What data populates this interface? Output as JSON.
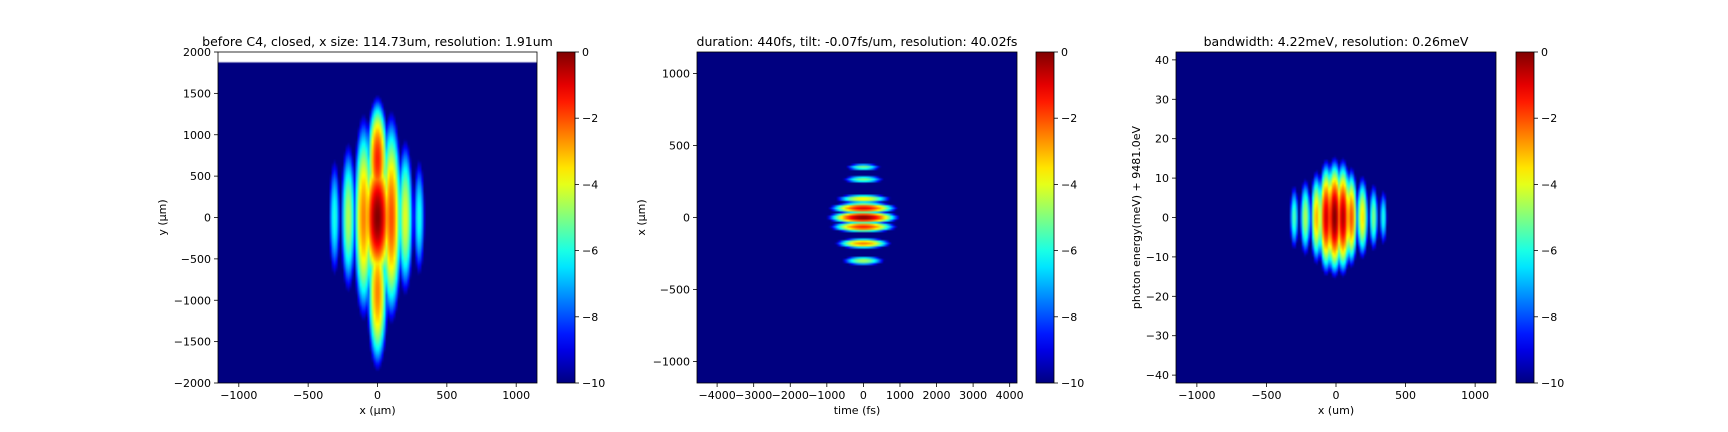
{
  "chart_data": [
    {
      "type": "heatmap",
      "title": "before C4, closed, x size: 114.73um, resolution: 1.91um",
      "xlabel": "x (μm)",
      "ylabel": "y (μm)",
      "xlim": [
        -1150,
        1150
      ],
      "ylim": [
        -2000,
        2000
      ],
      "xticks": [
        -1000,
        -500,
        0,
        500,
        1000
      ],
      "xtick_labels": [
        "−1000",
        "−500",
        "0",
        "500",
        "1000"
      ],
      "yticks": [
        -2000,
        -1500,
        -1000,
        -500,
        0,
        500,
        1000,
        1500,
        2000
      ],
      "ytick_labels": [
        "−2000",
        "−1500",
        "−1000",
        "−500",
        "0",
        "500",
        "1000",
        "1500",
        "2000"
      ],
      "colormap": "jet",
      "color_range": [
        -10,
        0
      ],
      "colorbar_ticks": [
        0,
        -2,
        -4,
        -6,
        -8,
        -10
      ],
      "colorbar_tick_labels": [
        "0",
        "−2",
        "−4",
        "−6",
        "−8",
        "−10"
      ],
      "data_extent_y_top": 1880,
      "background_value": -10,
      "blobs": [
        {
          "x": 0,
          "y": 0,
          "sx": 55,
          "sy": 420,
          "peak": 0
        },
        {
          "x": 0,
          "y": 700,
          "sx": 40,
          "sy": 380,
          "peak": -1.5
        },
        {
          "x": 0,
          "y": -900,
          "sx": 40,
          "sy": 500,
          "peak": -2.5
        },
        {
          "x": 100,
          "y": 0,
          "sx": 40,
          "sy": 650,
          "peak": -2
        },
        {
          "x": -100,
          "y": 0,
          "sx": 40,
          "sy": 650,
          "peak": -2.5
        },
        {
          "x": 200,
          "y": 0,
          "sx": 35,
          "sy": 550,
          "peak": -4
        },
        {
          "x": -210,
          "y": 0,
          "sx": 35,
          "sy": 550,
          "peak": -4.5
        },
        {
          "x": 300,
          "y": 0,
          "sx": 30,
          "sy": 500,
          "peak": -6
        },
        {
          "x": -310,
          "y": 0,
          "sx": 30,
          "sy": 500,
          "peak": -6
        }
      ]
    },
    {
      "type": "heatmap",
      "title": "duration: 440fs, tilt: -0.07fs/um, resolution: 40.02fs",
      "xlabel": "time (fs)",
      "ylabel": "x (μm)",
      "xlim": [
        -4550,
        4200
      ],
      "ylim": [
        -1150,
        1150
      ],
      "xticks": [
        -4000,
        -3000,
        -2000,
        -1000,
        0,
        1000,
        2000,
        3000,
        4000
      ],
      "xtick_labels": [
        "−4000",
        "−3000",
        "−2000",
        "−1000",
        "0",
        "1000",
        "2000",
        "3000",
        "4000"
      ],
      "yticks": [
        -1000,
        -500,
        0,
        500,
        1000
      ],
      "ytick_labels": [
        "−1000",
        "−500",
        "0",
        "500",
        "1000"
      ],
      "colormap": "jet",
      "color_range": [
        -10,
        0
      ],
      "colorbar_ticks": [
        0,
        -2,
        -4,
        -6,
        -8,
        -10
      ],
      "colorbar_tick_labels": [
        "0",
        "−2",
        "−4",
        "−6",
        "−8",
        "−10"
      ],
      "background_value": -10,
      "blobs": [
        {
          "x": 0,
          "y": 0,
          "sx": 450,
          "sy": 22,
          "peak": 0
        },
        {
          "x": 0,
          "y": 65,
          "sx": 450,
          "sy": 20,
          "peak": -1
        },
        {
          "x": 0,
          "y": -65,
          "sx": 450,
          "sy": 20,
          "peak": -1.5
        },
        {
          "x": 0,
          "y": 130,
          "sx": 420,
          "sy": 18,
          "peak": -3.5
        },
        {
          "x": 0,
          "y": -180,
          "sx": 400,
          "sy": 20,
          "peak": -2.5
        },
        {
          "x": 0,
          "y": 265,
          "sx": 350,
          "sy": 18,
          "peak": -5
        },
        {
          "x": 0,
          "y": -300,
          "sx": 350,
          "sy": 20,
          "peak": -4.5
        },
        {
          "x": 0,
          "y": 350,
          "sx": 300,
          "sy": 16,
          "peak": -5
        }
      ]
    },
    {
      "type": "heatmap",
      "title": "bandwidth: 4.22meV, resolution: 0.26meV",
      "xlabel": "x (um)",
      "ylabel": "photon energy(meV) + 9481.0eV",
      "xlim": [
        -1150,
        1150
      ],
      "ylim": [
        -42,
        42
      ],
      "xticks": [
        -1000,
        -500,
        0,
        500,
        1000
      ],
      "xtick_labels": [
        "−1000",
        "−500",
        "0",
        "500",
        "1000"
      ],
      "yticks": [
        -40,
        -30,
        -20,
        -10,
        0,
        10,
        20,
        30,
        40
      ],
      "ytick_labels": [
        "−40",
        "−30",
        "−20",
        "−10",
        "0",
        "10",
        "20",
        "30",
        "40"
      ],
      "colormap": "jet",
      "color_range": [
        -10,
        0
      ],
      "colorbar_ticks": [
        0,
        -2,
        -4,
        -6,
        -8,
        -10
      ],
      "colorbar_tick_labels": [
        "0",
        "−2",
        "−4",
        "−6",
        "−8",
        "−10"
      ],
      "background_value": -10,
      "blobs": [
        {
          "x": -10,
          "y": 0,
          "sx": 30,
          "sy": 7,
          "peak": 0
        },
        {
          "x": 50,
          "y": 0,
          "sx": 28,
          "sy": 7,
          "peak": -0.5
        },
        {
          "x": -70,
          "y": 0,
          "sx": 28,
          "sy": 7,
          "peak": -0.8
        },
        {
          "x": 110,
          "y": 0,
          "sx": 25,
          "sy": 6.5,
          "peak": -2
        },
        {
          "x": -140,
          "y": 0,
          "sx": 25,
          "sy": 6.5,
          "peak": -3
        },
        {
          "x": 190,
          "y": 0,
          "sx": 25,
          "sy": 6,
          "peak": -3.5
        },
        {
          "x": -220,
          "y": 0,
          "sx": 25,
          "sy": 6,
          "peak": -4.5
        },
        {
          "x": 270,
          "y": 0,
          "sx": 22,
          "sy": 5.5,
          "peak": -5
        },
        {
          "x": -300,
          "y": 0,
          "sx": 22,
          "sy": 5.5,
          "peak": -5.5
        },
        {
          "x": 340,
          "y": 0,
          "sx": 20,
          "sy": 5,
          "peak": -6
        }
      ]
    }
  ]
}
